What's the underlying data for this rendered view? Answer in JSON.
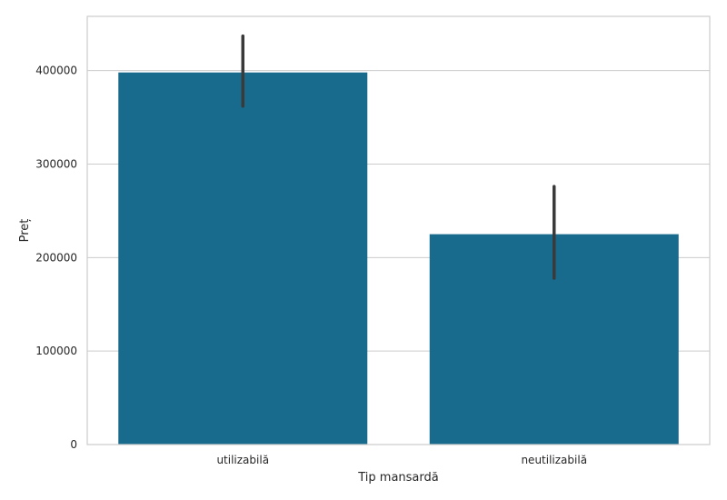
{
  "chart_data": {
    "type": "bar",
    "title": "",
    "xlabel": "Tip mansardă",
    "ylabel": "Preț",
    "categories": [
      "utilizabilă",
      "neutilizabilă"
    ],
    "values": [
      398000,
      225000
    ],
    "error_bars": [
      {
        "low": 362000,
        "high": 437000
      },
      {
        "low": 178000,
        "high": 276000
      }
    ],
    "ylim": [
      0,
      458000
    ],
    "yticks": [
      0,
      100000,
      200000,
      300000,
      400000
    ],
    "ytick_labels": [
      "0",
      "100000",
      "200000",
      "300000",
      "400000"
    ],
    "grid": true,
    "legend": "none",
    "colors": {
      "bar": "#186b8d",
      "error_bar": "#3a3a3a",
      "grid": "#cccccc",
      "frame": "#cccccc"
    }
  }
}
